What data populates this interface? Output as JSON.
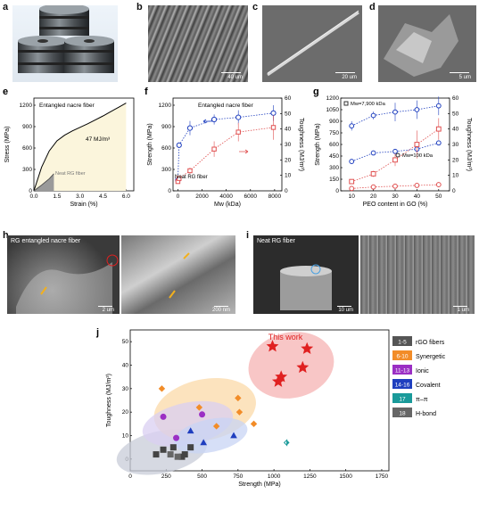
{
  "panels": {
    "a": {
      "letter": "a"
    },
    "b": {
      "letter": "b",
      "scale": "40 um"
    },
    "c": {
      "letter": "c",
      "scale": "20 um"
    },
    "d": {
      "letter": "d",
      "scale": "5 um"
    },
    "h": {
      "letter": "h",
      "title": "RG entangled nacre fiber",
      "scale_left": "2 um",
      "scale_right": "200 nm"
    },
    "i": {
      "letter": "i",
      "title": "Neat RG fiber",
      "scale_left": "10 um",
      "scale_right": "1 um"
    }
  },
  "chart_data": [
    {
      "id": "e",
      "type": "line",
      "letter": "e",
      "title": "Entangled nacre fiber",
      "xlabel": "Strain (%)",
      "ylabel": "Stress (MPa)",
      "xlim": [
        0,
        6.5
      ],
      "ylim": [
        0,
        1300
      ],
      "xticks": [
        "0.0",
        "1.5",
        "3.0",
        "4.5",
        "6.0"
      ],
      "yticks": [
        "0",
        "300",
        "600",
        "900",
        "1200"
      ],
      "annotation": "47 MJ/m³",
      "neat_label": "Neat RG fiber",
      "series": [
        {
          "name": "Entangled nacre fiber",
          "x": [
            0,
            0.5,
            1.0,
            1.5,
            2.0,
            2.5,
            3.0,
            3.5,
            4.0,
            4.5,
            5.0,
            5.5,
            6.0
          ],
          "y": [
            0,
            330,
            560,
            700,
            780,
            840,
            890,
            940,
            995,
            1050,
            1110,
            1170,
            1230
          ]
        },
        {
          "name": "Neat RG fiber",
          "x": [
            0,
            0.5,
            1.0,
            1.3
          ],
          "y": [
            0,
            80,
            170,
            240
          ]
        }
      ]
    },
    {
      "id": "f",
      "type": "scatter",
      "letter": "f",
      "title": "Entangled nacre fiber",
      "xlabel": "Mw (kDa)",
      "ylabel": "Strength (MPa)",
      "ylabel2": "Toughness (MJ/m³)",
      "xlim": [
        -400,
        8600
      ],
      "ylim": [
        0,
        1300
      ],
      "y2lim": [
        0,
        60
      ],
      "xticks": [
        "0",
        "2000",
        "4000",
        "6000",
        "8000"
      ],
      "yticks": [
        "0",
        "300",
        "600",
        "900",
        "1200"
      ],
      "y2ticks": [
        "0",
        "10",
        "20",
        "30",
        "40",
        "50",
        "60"
      ],
      "neat_label": "Neat RG fiber",
      "series": [
        {
          "name": "Strength",
          "x": [
            0,
            100,
            1000,
            3000,
            5000,
            7900
          ],
          "y": [
            150,
            640,
            880,
            1000,
            1030,
            1090
          ],
          "err": [
            20,
            40,
            100,
            70,
            100,
            110
          ]
        },
        {
          "name": "Toughness",
          "x": [
            0,
            100,
            1000,
            3000,
            5000,
            7900
          ],
          "y": [
            6,
            8,
            13,
            27,
            38,
            41
          ],
          "err": [
            1,
            1,
            2,
            5,
            6,
            8
          ]
        }
      ]
    },
    {
      "id": "g",
      "type": "scatter",
      "letter": "g",
      "xlabel": "PEO content in GO (%)",
      "ylabel": "Strength (MPa)",
      "ylabel2": "Toughness (MJ/m³)",
      "xlim": [
        5,
        55
      ],
      "ylim": [
        0,
        1200
      ],
      "y2lim": [
        0,
        60
      ],
      "xticks": [
        "10",
        "20",
        "30",
        "40",
        "50"
      ],
      "yticks": [
        "0",
        "150",
        "300",
        "450",
        "600",
        "750",
        "900",
        "1050",
        "1200"
      ],
      "y2ticks": [
        "0",
        "10",
        "20",
        "30",
        "40",
        "50",
        "60"
      ],
      "legend_high": "Mw=7,900 kDa",
      "legend_low": "Mw=100 kDa",
      "series": [
        {
          "name": "Strength Mw=7,900 kDa",
          "x": [
            10,
            20,
            30,
            40,
            50
          ],
          "y": [
            840,
            975,
            1020,
            1050,
            1100
          ],
          "err": [
            60,
            50,
            120,
            120,
            120
          ]
        },
        {
          "name": "Strength Mw=100 kDa",
          "x": [
            10,
            20,
            30,
            40,
            50
          ],
          "y": [
            380,
            490,
            510,
            540,
            620
          ],
          "err": [
            25,
            20,
            30,
            40,
            30
          ]
        },
        {
          "name": "Toughness Mw=7,900 kDa",
          "x": [
            10,
            20,
            30,
            40,
            50
          ],
          "y": [
            6,
            11,
            20,
            30,
            40
          ],
          "err": [
            1,
            2,
            4,
            9,
            7
          ]
        },
        {
          "name": "Toughness Mw=100 kDa",
          "x": [
            10,
            20,
            30,
            40,
            50
          ],
          "y": [
            1.5,
            2.5,
            3,
            3.5,
            4
          ],
          "err": [
            0.5,
            0.5,
            0.5,
            0.5,
            0.5
          ]
        }
      ]
    },
    {
      "id": "j",
      "type": "scatter",
      "letter": "j",
      "xlabel": "Strength (MPa)",
      "ylabel": "Toughness (MJ/m³)",
      "xlim": [
        0,
        1800
      ],
      "ylim": [
        -5,
        55
      ],
      "xticks": [
        "0",
        "250",
        "500",
        "750",
        "1000",
        "1250",
        "1500",
        "1750"
      ],
      "yticks": [
        "0",
        "10",
        "20",
        "30",
        "40",
        "50"
      ],
      "highlight": "This work",
      "legend": [
        {
          "key": "1-5",
          "label": "rGO fibers",
          "color": "#555555"
        },
        {
          "key": "6-10",
          "label": "Synergetic",
          "color": "#f28c28"
        },
        {
          "key": "11-13",
          "label": "Ionic",
          "color": "#9b2fc4"
        },
        {
          "key": "14-16",
          "label": "Covalent",
          "color": "#1f3fbf"
        },
        {
          "key": "17",
          "label": "π–π",
          "color": "#1a9a9a"
        },
        {
          "key": "18",
          "label": "H-bond",
          "color": "#666666"
        }
      ],
      "series": [
        {
          "name": "This work",
          "color": "#e02020",
          "marker": "star",
          "x": [
            990,
            1050,
            1030,
            1230,
            1200
          ],
          "y": [
            48,
            35,
            33,
            47,
            39
          ]
        },
        {
          "name": "rGO fibers",
          "color": "#444444",
          "marker": "square",
          "x": [
            180,
            230,
            300,
            360,
            380,
            420
          ],
          "y": [
            2,
            4,
            5,
            1,
            2,
            5
          ]
        },
        {
          "name": "Synergetic",
          "color": "#f28c28",
          "marker": "diamond",
          "x": [
            220,
            480,
            600,
            750,
            760,
            860
          ],
          "y": [
            30,
            22,
            14,
            26,
            20,
            15
          ]
        },
        {
          "name": "Ionic",
          "color": "#9b2fc4",
          "marker": "circle",
          "x": [
            230,
            320,
            500
          ],
          "y": [
            18,
            9,
            19
          ]
        },
        {
          "name": "Covalent",
          "color": "#1f3fbf",
          "marker": "triangle",
          "x": [
            420,
            720,
            510
          ],
          "y": [
            12,
            10,
            7
          ]
        },
        {
          "name": "π–π",
          "color": "#1a9a9a",
          "marker": "halfdiamond",
          "x": [
            1090
          ],
          "y": [
            7
          ]
        },
        {
          "name": "H-bond",
          "color": "#666666",
          "marker": "square",
          "x": [
            280,
            330
          ],
          "y": [
            2,
            1
          ]
        }
      ]
    }
  ]
}
